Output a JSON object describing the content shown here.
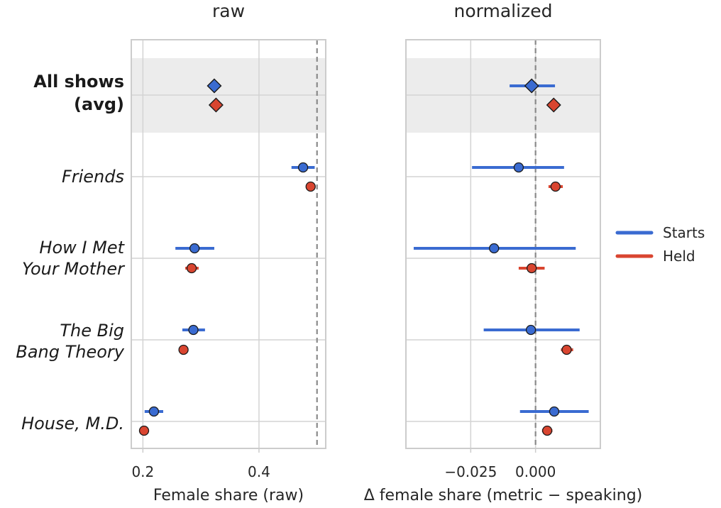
{
  "chart_data": {
    "type": "scatter",
    "rows": [
      {
        "id": "all",
        "label_lines": [
          "All shows",
          "(avg)"
        ],
        "style": "bold",
        "highlight": true,
        "marker": "diamond"
      },
      {
        "id": "friends",
        "label_lines": [
          "Friends"
        ],
        "style": "italic",
        "marker": "circle"
      },
      {
        "id": "himym",
        "label_lines": [
          "How I Met",
          "Your Mother"
        ],
        "style": "italic",
        "marker": "circle"
      },
      {
        "id": "tbbt",
        "label_lines": [
          "The Big",
          "Bang Theory"
        ],
        "style": "italic",
        "marker": "circle"
      },
      {
        "id": "house",
        "label_lines": [
          "House, M.D."
        ],
        "style": "italic",
        "marker": "circle"
      }
    ],
    "series_colors": {
      "Starts": "#3a6bd1",
      "Held": "#d94530"
    },
    "legend": {
      "position": "right",
      "entries": [
        "Starts",
        "Held"
      ]
    },
    "panels": [
      {
        "title": "raw",
        "xlabel": "Female share (raw)",
        "xlim": [
          0.18,
          0.515
        ],
        "xticks": [
          0.2,
          0.4
        ],
        "xtick_labels": [
          "0.2",
          "0.4"
        ],
        "refline": 0.5,
        "points": [
          {
            "row": "all",
            "series": "Starts",
            "x": 0.323
          },
          {
            "row": "all",
            "series": "Held",
            "x": 0.326
          },
          {
            "row": "friends",
            "series": "Starts",
            "x": 0.476,
            "lo": 0.456,
            "hi": 0.496
          },
          {
            "row": "friends",
            "series": "Held",
            "x": 0.489
          },
          {
            "row": "himym",
            "series": "Starts",
            "x": 0.289,
            "lo": 0.256,
            "hi": 0.323
          },
          {
            "row": "himym",
            "series": "Held",
            "x": 0.284,
            "lo": 0.273,
            "hi": 0.296
          },
          {
            "row": "tbbt",
            "series": "Starts",
            "x": 0.287,
            "lo": 0.268,
            "hi": 0.307
          },
          {
            "row": "tbbt",
            "series": "Held",
            "x": 0.27
          },
          {
            "row": "house",
            "series": "Starts",
            "x": 0.219,
            "lo": 0.203,
            "hi": 0.235
          },
          {
            "row": "house",
            "series": "Held",
            "x": 0.202
          }
        ]
      },
      {
        "title": "normalized",
        "xlabel": "Δ female share (metric − speaking)",
        "xlim": [
          -0.05,
          0.025
        ],
        "xticks": [
          -0.025,
          0.0
        ],
        "xtick_labels": [
          "−0.025",
          "0.000"
        ],
        "refline": 0.0,
        "points": [
          {
            "row": "all",
            "series": "Starts",
            "x": -0.0015,
            "lo": -0.01,
            "hi": 0.0075
          },
          {
            "row": "all",
            "series": "Held",
            "x": 0.007
          },
          {
            "row": "friends",
            "series": "Starts",
            "x": -0.0065,
            "lo": -0.0245,
            "hi": 0.011
          },
          {
            "row": "friends",
            "series": "Held",
            "x": 0.0077,
            "lo": 0.005,
            "hi": 0.0105
          },
          {
            "row": "himym",
            "series": "Starts",
            "x": -0.016,
            "lo": -0.047,
            "hi": 0.0155
          },
          {
            "row": "himym",
            "series": "Held",
            "x": -0.0015,
            "lo": -0.0065,
            "hi": 0.0035
          },
          {
            "row": "tbbt",
            "series": "Starts",
            "x": -0.0018,
            "lo": -0.02,
            "hi": 0.017
          },
          {
            "row": "tbbt",
            "series": "Held",
            "x": 0.012,
            "lo": 0.0098,
            "hi": 0.0145
          },
          {
            "row": "house",
            "series": "Starts",
            "x": 0.0072,
            "lo": -0.006,
            "hi": 0.0205
          },
          {
            "row": "house",
            "series": "Held",
            "x": 0.0045,
            "lo": 0.0025,
            "hi": 0.0065
          }
        ]
      }
    ]
  }
}
